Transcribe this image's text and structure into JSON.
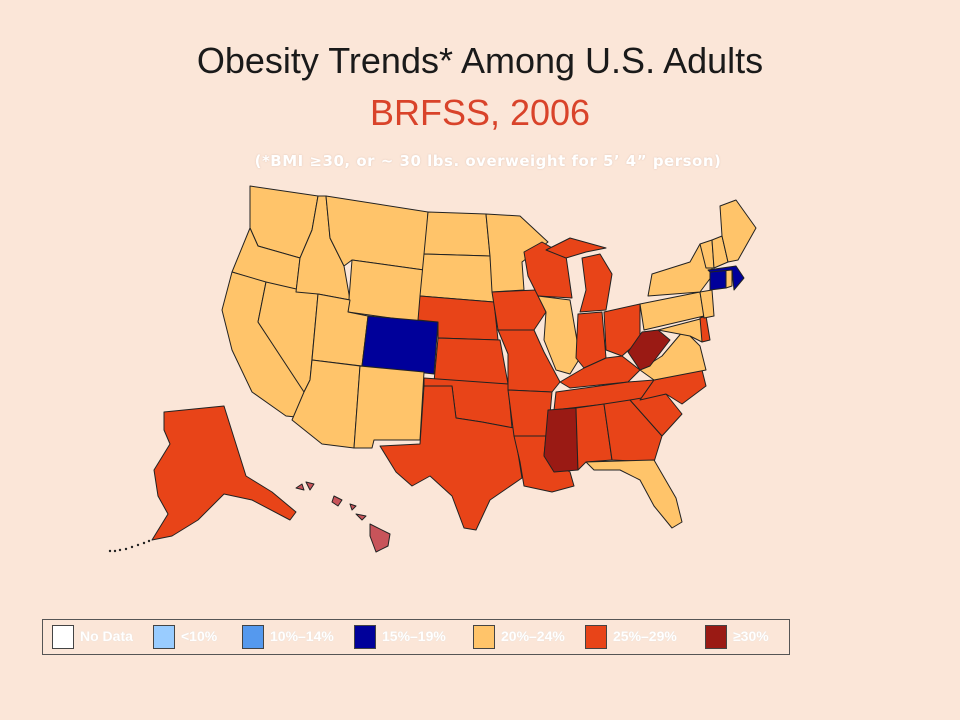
{
  "title": "Obesity Trends* Among U.S. Adults",
  "subtitle": "BRFSS, 2006",
  "note": "(*BMI ≥30, or ~ 30 lbs. overweight for 5’ 4” person)",
  "legend": [
    {
      "label": "No Data",
      "color": "#ffffff"
    },
    {
      "label": "<10%",
      "color": "#99ccff"
    },
    {
      "label": "10%–14%",
      "color": "#5599ee"
    },
    {
      "label": "15%–19%",
      "color": "#00009a"
    },
    {
      "label": "20%–24%",
      "color": "#ffc46a"
    },
    {
      "label": "25%–29%",
      "color": "#e84418"
    },
    {
      "label": "≥30%",
      "color": "#9a1a14"
    }
  ],
  "states": [
    {
      "id": "WA",
      "cls": "20-24"
    },
    {
      "id": "OR",
      "cls": "20-24"
    },
    {
      "id": "CA",
      "cls": "20-24"
    },
    {
      "id": "ID",
      "cls": "20-24"
    },
    {
      "id": "NV",
      "cls": "20-24"
    },
    {
      "id": "MT",
      "cls": "20-24"
    },
    {
      "id": "WY",
      "cls": "20-24"
    },
    {
      "id": "UT",
      "cls": "20-24"
    },
    {
      "id": "AZ",
      "cls": "20-24"
    },
    {
      "id": "CO",
      "cls": "15-19"
    },
    {
      "id": "NM",
      "cls": "20-24"
    },
    {
      "id": "ND",
      "cls": "20-24"
    },
    {
      "id": "SD",
      "cls": "20-24"
    },
    {
      "id": "NE",
      "cls": "25-29"
    },
    {
      "id": "KS",
      "cls": "25-29"
    },
    {
      "id": "OK",
      "cls": "25-29"
    },
    {
      "id": "TX",
      "cls": "25-29"
    },
    {
      "id": "MN",
      "cls": "20-24"
    },
    {
      "id": "IA",
      "cls": "25-29"
    },
    {
      "id": "MO",
      "cls": "25-29"
    },
    {
      "id": "AR",
      "cls": "25-29"
    },
    {
      "id": "LA",
      "cls": "25-29"
    },
    {
      "id": "WI",
      "cls": "25-29"
    },
    {
      "id": "IL",
      "cls": "20-24"
    },
    {
      "id": "MI",
      "cls": "25-29"
    },
    {
      "id": "IN",
      "cls": "25-29"
    },
    {
      "id": "OH",
      "cls": "25-29"
    },
    {
      "id": "KY",
      "cls": "25-29"
    },
    {
      "id": "TN",
      "cls": "25-29"
    },
    {
      "id": "MS",
      "cls": "30+"
    },
    {
      "id": "AL",
      "cls": "25-29"
    },
    {
      "id": "GA",
      "cls": "25-29"
    },
    {
      "id": "FL",
      "cls": "20-24"
    },
    {
      "id": "SC",
      "cls": "25-29"
    },
    {
      "id": "NC",
      "cls": "25-29"
    },
    {
      "id": "VA",
      "cls": "20-24"
    },
    {
      "id": "WV",
      "cls": "30+"
    },
    {
      "id": "PA",
      "cls": "20-24"
    },
    {
      "id": "NY",
      "cls": "20-24"
    },
    {
      "id": "VT",
      "cls": "20-24"
    },
    {
      "id": "NH",
      "cls": "20-24"
    },
    {
      "id": "ME",
      "cls": "20-24"
    },
    {
      "id": "MA",
      "cls": "15-19"
    },
    {
      "id": "CT",
      "cls": "15-19"
    },
    {
      "id": "RI",
      "cls": "20-24"
    },
    {
      "id": "NJ",
      "cls": "20-24"
    },
    {
      "id": "DE",
      "cls": "25-29"
    },
    {
      "id": "MD",
      "cls": "20-24"
    },
    {
      "id": "AK",
      "cls": "25-29"
    },
    {
      "id": "HI",
      "cls": "hawaii"
    }
  ],
  "class_colors": {
    "15-19": "#00009a",
    "20-24": "#ffc46a",
    "25-29": "#e84418",
    "30+": "#9a1a14",
    "hawaii": "#c8545a"
  }
}
